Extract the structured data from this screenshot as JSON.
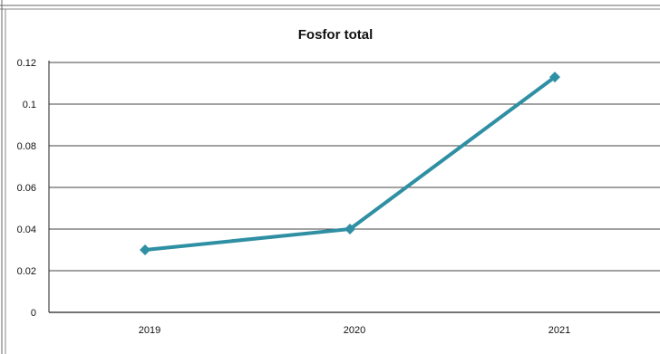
{
  "chart_data": {
    "type": "line",
    "title": "Fosfor total",
    "categories": [
      "2019",
      "2020",
      "2021"
    ],
    "series": [
      {
        "values": [
          0.03,
          0.04,
          0.113
        ]
      }
    ],
    "ylim": [
      0,
      0.12
    ],
    "yticks": [
      "0",
      "0.02",
      "0.04",
      "0.06",
      "0.08",
      "0.1",
      "0.12"
    ],
    "ytick_values": [
      0,
      0.02,
      0.04,
      0.06,
      0.08,
      0.1,
      0.12
    ],
    "grid": true,
    "legend": "none",
    "colors": {
      "line": "#2f8fa3",
      "marker": "#2f8fa3",
      "grid": "#444444"
    }
  }
}
